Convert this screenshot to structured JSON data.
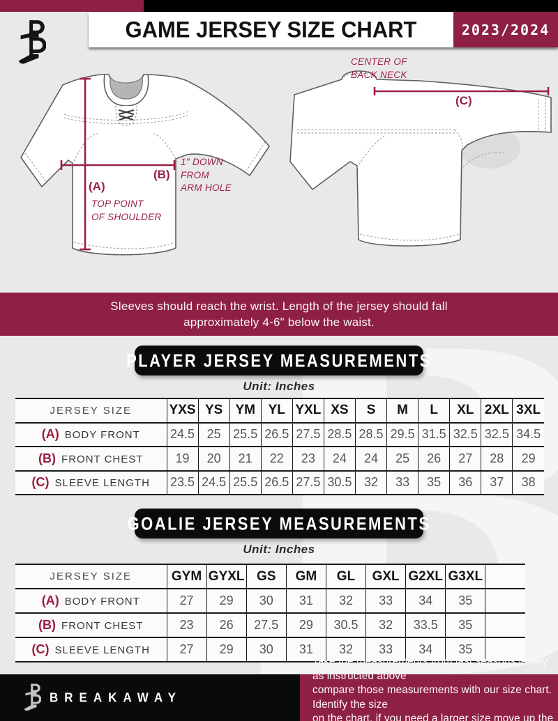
{
  "header": {
    "title": "GAME JERSEY SIZE CHART",
    "season": "2023/2024"
  },
  "front_diagram": {
    "a_key": "(A)",
    "a_lines": [
      "TOP POINT",
      "OF SHOULDER"
    ],
    "b_key": "(B)",
    "b_lines": [
      "1\" DOWN",
      "FROM",
      "ARM HOLE"
    ]
  },
  "back_diagram": {
    "c_key": "(C)",
    "c_lines": [
      "CENTER OF",
      "BACK NECK"
    ]
  },
  "notice_lines": [
    "Sleeves should reach the wrist. Length of the jersey should fall",
    "approximately 4-6\" below the waist."
  ],
  "player_table": {
    "title": "PLAYER JERSEY MEASUREMENTS",
    "unit": "Unit: Inches",
    "header": [
      "JERSEY SIZE",
      "YXS",
      "YS",
      "YM",
      "YL",
      "YXL",
      "XS",
      "S",
      "M",
      "L",
      "XL",
      "2XL",
      "3XL"
    ],
    "rows": [
      {
        "key": "(A)",
        "label": "BODY FRONT",
        "values": [
          24.5,
          25,
          25.5,
          26.5,
          27.5,
          28.5,
          28.5,
          29.5,
          31.5,
          32.5,
          32.5,
          34.5
        ]
      },
      {
        "key": "(B)",
        "label": "FRONT CHEST",
        "values": [
          19,
          20,
          21,
          22,
          23,
          24,
          24,
          25,
          26,
          27,
          28,
          29
        ]
      },
      {
        "key": "(C)",
        "label": "SLEEVE LENGTH",
        "values": [
          23.5,
          24.5,
          25.5,
          26.5,
          27.5,
          30.5,
          32,
          33,
          35,
          36,
          37,
          38
        ]
      }
    ]
  },
  "goalie_table": {
    "title": "GOALIE JERSEY MEASUREMENTS",
    "unit": "Unit: Inches",
    "header": [
      "JERSEY SIZE",
      "GYM",
      "GYXL",
      "GS",
      "GM",
      "GL",
      "GXL",
      "G2XL",
      "G3XL",
      ""
    ],
    "rows": [
      {
        "key": "(A)",
        "label": "BODY FRONT",
        "values": [
          27,
          29,
          30,
          31,
          32,
          33,
          34,
          35,
          ""
        ]
      },
      {
        "key": "(B)",
        "label": "FRONT CHEST",
        "values": [
          23,
          26,
          27.5,
          29,
          30.5,
          32,
          33.5,
          35,
          ""
        ]
      },
      {
        "key": "(C)",
        "label": "SLEEVE LENGTH",
        "values": [
          27,
          29,
          30,
          31,
          32,
          33,
          34,
          35,
          ""
        ]
      }
    ]
  },
  "footer": {
    "brand": "BREAKAWAY",
    "note_lines": [
      "Take the measurements from last seasons jersey as instructed above",
      "compare those measurements  with our size chart. Identify the size",
      "on the chart, if you need a larger size move up the scale on the chart"
    ]
  },
  "watermark": "B",
  "colors": {
    "maroon": "#8e2143",
    "annotation": "#9b2143",
    "black": "#0a0a0a",
    "page_bg": "#e9e9e9"
  }
}
